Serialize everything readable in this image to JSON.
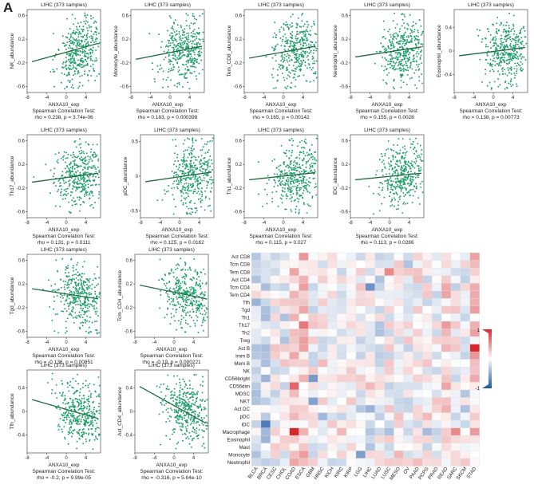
{
  "panel_label": "A",
  "chart_data": [
    {
      "type": "scatter",
      "title": "LIHC (373 samples)",
      "xlabel": "ANXA10_exp",
      "ylabel": "NK_abundance",
      "stat_title": "Spearman Correlation Test:",
      "stat": "rho = 0.238, p = 3.74e-06",
      "xlim": [
        -8,
        7
      ],
      "ylim": [
        -0.7,
        0.7
      ],
      "xticks": [
        -8,
        -4,
        0,
        4
      ],
      "yticks": [
        -0.6,
        -0.2,
        0.2,
        0.6
      ],
      "trend": {
        "x": [
          -7,
          6.5
        ],
        "y": [
          -0.18,
          0.13
        ]
      },
      "rho": 0.238,
      "seed": 11
    },
    {
      "type": "scatter",
      "title": "LIHC (373 samples)",
      "xlabel": "ANXA10_exp",
      "ylabel": "Monocyte_abundance",
      "stat_title": "Spearman Correlation Test:",
      "stat": "rho = 0.183, p = 0.000398",
      "xlim": [
        -8,
        7
      ],
      "ylim": [
        -0.7,
        0.7
      ],
      "xticks": [
        -8,
        -4,
        0,
        4
      ],
      "yticks": [
        -0.6,
        -0.2,
        0.2,
        0.6
      ],
      "trend": {
        "x": [
          -7,
          6.5
        ],
        "y": [
          -0.14,
          0.08
        ]
      },
      "rho": 0.183,
      "seed": 23
    },
    {
      "type": "scatter",
      "title": "LIHC (373 samples)",
      "xlabel": "ANXA10_exp",
      "ylabel": "Tem_CD8_abundance",
      "stat_title": "Spearman Correlation Test:",
      "stat": "rho = 0.165, p = 0.00142",
      "xlim": [
        -8,
        7
      ],
      "ylim": [
        -0.7,
        0.7
      ],
      "xticks": [
        -8,
        -4,
        0,
        4
      ],
      "yticks": [
        -0.6,
        -0.2,
        0.2,
        0.6
      ],
      "trend": {
        "x": [
          -7,
          6.5
        ],
        "y": [
          -0.12,
          0.08
        ]
      },
      "rho": 0.165,
      "seed": 37
    },
    {
      "type": "scatter",
      "title": "LIHC (373 samples)",
      "xlabel": "ANXA10_exp",
      "ylabel": "Neutrophil_abundance",
      "stat_title": "Spearman Correlation Test:",
      "stat": "rho = 0.155, p = 0.0028",
      "xlim": [
        -8,
        7
      ],
      "ylim": [
        -0.7,
        0.7
      ],
      "xticks": [
        -8,
        -4,
        0,
        4
      ],
      "yticks": [
        -0.6,
        -0.2,
        0.2,
        0.6
      ],
      "trend": {
        "x": [
          -7,
          6.5
        ],
        "y": [
          -0.1,
          0.07
        ]
      },
      "rho": 0.155,
      "seed": 41
    },
    {
      "type": "scatter",
      "title": "LIHC (373 samples)",
      "xlabel": "ANXA10_exp",
      "ylabel": "Eosinophil_abundance",
      "stat_title": "Spearman Correlation Test:",
      "stat": "rho = 0.138, p = 0.00773",
      "xlim": [
        -8,
        7
      ],
      "ylim": [
        -0.7,
        0.7
      ],
      "xticks": [
        -8,
        -4,
        0,
        4
      ],
      "yticks": [
        -0.4,
        0,
        0.4
      ],
      "trend": {
        "x": [
          -7,
          6.5
        ],
        "y": [
          -0.08,
          0.06
        ]
      },
      "rho": 0.138,
      "seed": 53
    },
    {
      "type": "scatter",
      "title": "LIHC (373 samples)",
      "xlabel": "ANXA10_exp",
      "ylabel": "Th17_abundance",
      "stat_title": "Spearman Correlation Test:",
      "stat": "rho = 0.131, p = 0.0111",
      "xlim": [
        -8,
        7
      ],
      "ylim": [
        -0.7,
        0.7
      ],
      "xticks": [
        -8,
        -4,
        0,
        4
      ],
      "yticks": [
        -0.6,
        -0.2,
        0.2,
        0.6
      ],
      "trend": {
        "x": [
          -7,
          6.5
        ],
        "y": [
          -0.1,
          0.05
        ]
      },
      "rho": 0.131,
      "seed": 61
    },
    {
      "type": "scatter",
      "title": "LIHC (373 samples)",
      "xlabel": "ANXA10_exp",
      "ylabel": "pDC_abundance",
      "stat_title": "Spearman Correlation Test:",
      "stat": "rho = 0.125, p = 0.0162",
      "xlim": [
        -8,
        7
      ],
      "ylim": [
        -0.6,
        0.6
      ],
      "xticks": [
        -8,
        -4,
        0,
        4
      ],
      "yticks": [
        -0.5,
        0,
        0.5
      ],
      "trend": {
        "x": [
          -7,
          6.5
        ],
        "y": [
          -0.08,
          0.06
        ]
      },
      "rho": 0.125,
      "seed": 71
    },
    {
      "type": "scatter",
      "title": "LIHC (373 samples)",
      "xlabel": "ANXA10_exp",
      "ylabel": "Th1_abundance",
      "stat_title": "Spearman Correlation Test:",
      "stat": "rho = 0.115, p = 0.027",
      "xlim": [
        -8,
        7
      ],
      "ylim": [
        -0.7,
        0.7
      ],
      "xticks": [
        -8,
        -4,
        0,
        4
      ],
      "yticks": [
        -0.6,
        -0.2,
        0.2,
        0.6
      ],
      "trend": {
        "x": [
          -7,
          6.5
        ],
        "y": [
          -0.06,
          0.06
        ]
      },
      "rho": 0.115,
      "seed": 83
    },
    {
      "type": "scatter",
      "title": "LIHC (373 samples)",
      "xlabel": "ANXA10_exp",
      "ylabel": "iDC_abundance",
      "stat_title": "Spearman Correlation Test:",
      "stat": "rho = 0.113, p = 0.0286",
      "xlim": [
        -8,
        7
      ],
      "ylim": [
        -0.7,
        0.7
      ],
      "xticks": [
        -8,
        -4,
        0,
        4
      ],
      "yticks": [
        -0.6,
        -0.2,
        0.2,
        0.6
      ],
      "trend": {
        "x": [
          -7,
          6.5
        ],
        "y": [
          -0.06,
          0.05
        ]
      },
      "rho": 0.113,
      "seed": 97
    },
    {
      "type": "scatter",
      "title": "LIHC (373 samples)",
      "xlabel": "ANXA10_exp",
      "ylabel": "Tgd_abundance",
      "stat_title": "Spearman Correlation Test:",
      "stat": "rho = -0.136, p = 0.00851",
      "xlim": [
        -8,
        7
      ],
      "ylim": [
        -0.7,
        0.7
      ],
      "xticks": [
        -8,
        -4,
        0,
        4
      ],
      "yticks": [
        -0.6,
        -0.2,
        0.2,
        0.6
      ],
      "trend": {
        "x": [
          -7,
          6.5
        ],
        "y": [
          0.12,
          -0.05
        ]
      },
      "rho": -0.136,
      "seed": 101
    },
    {
      "type": "scatter",
      "title": "LIHC (373 samples)",
      "xlabel": "ANXA10_exp",
      "ylabel": "Tcm_CD4_abundance",
      "stat_title": "Spearman Correlation Test:",
      "stat": "rho = -0.19, p = 0.000221",
      "xlim": [
        -8,
        7
      ],
      "ylim": [
        -0.7,
        0.7
      ],
      "xticks": [
        -8,
        -4,
        0,
        4
      ],
      "yticks": [
        -0.6,
        -0.2,
        0.2,
        0.6
      ],
      "trend": {
        "x": [
          -7,
          6.5
        ],
        "y": [
          0.18,
          -0.05
        ]
      },
      "rho": -0.19,
      "seed": 113
    },
    {
      "type": "scatter",
      "title": "LIHC (373 samples)",
      "xlabel": "ANXA10_exp",
      "ylabel": "Tfh_abundance",
      "stat_title": "Spearman Correlation Test:",
      "stat": "rho = -0.2, p = 9.99e-05",
      "xlim": [
        -8,
        7
      ],
      "ylim": [
        -0.7,
        0.7
      ],
      "xticks": [
        -8,
        -4,
        0,
        4
      ],
      "yticks": [
        -0.4,
        0,
        0.4
      ],
      "trend": {
        "x": [
          -7,
          6.5
        ],
        "y": [
          0.2,
          -0.12
        ]
      },
      "rho": -0.2,
      "seed": 127
    },
    {
      "type": "scatter",
      "title": "LIHC (373 samples)",
      "xlabel": "ANXA10_exp",
      "ylabel": "Act_CD4_abundance",
      "stat_title": "Spearman Correlation Test:",
      "stat": "rho = -0.316, p = 5.64e-10",
      "xlim": [
        -8,
        7
      ],
      "ylim": [
        -0.7,
        0.7
      ],
      "xticks": [
        -8,
        -4,
        0,
        4
      ],
      "yticks": [
        -0.4,
        0,
        0.4
      ],
      "trend": {
        "x": [
          -7,
          6.5
        ],
        "y": [
          0.42,
          -0.2
        ]
      },
      "rho": -0.316,
      "seed": 131
    },
    {
      "type": "heatmap",
      "rows": [
        "Act CD8",
        "Tcm CD8",
        "Tem CD8",
        "Act CD4",
        "Tcm CD4",
        "Tem CD4",
        "Tfh",
        "Tgd",
        "Th1",
        "Th17",
        "Th2",
        "Treg",
        "Act B",
        "Imm B",
        "Mem B",
        "NK",
        "CD56bright",
        "CD56dim",
        "MDSC",
        "NKT",
        "Act DC",
        "pDC",
        "iDC",
        "Macrophage",
        "Eosinophil",
        "Mast",
        "Monocyte",
        "Neutrophil"
      ],
      "columns": [
        "BLCA",
        "BRCA",
        "CESC",
        "CHOL",
        "COAD",
        "ESCA",
        "GBM",
        "HNSC",
        "KICH",
        "KIRC",
        "KIRP",
        "LGG",
        "LIHC",
        "LUAD",
        "LUSC",
        "MESO",
        "OV",
        "PAAD",
        "PCPG",
        "PRAD",
        "READ",
        "SARC",
        "SKCM",
        "STAD"
      ],
      "legend": {
        "max_label": "1",
        "min_label": "-1",
        "max_color": "#d6282b",
        "min_color": "#1d56a6"
      },
      "seed": 7
    }
  ]
}
